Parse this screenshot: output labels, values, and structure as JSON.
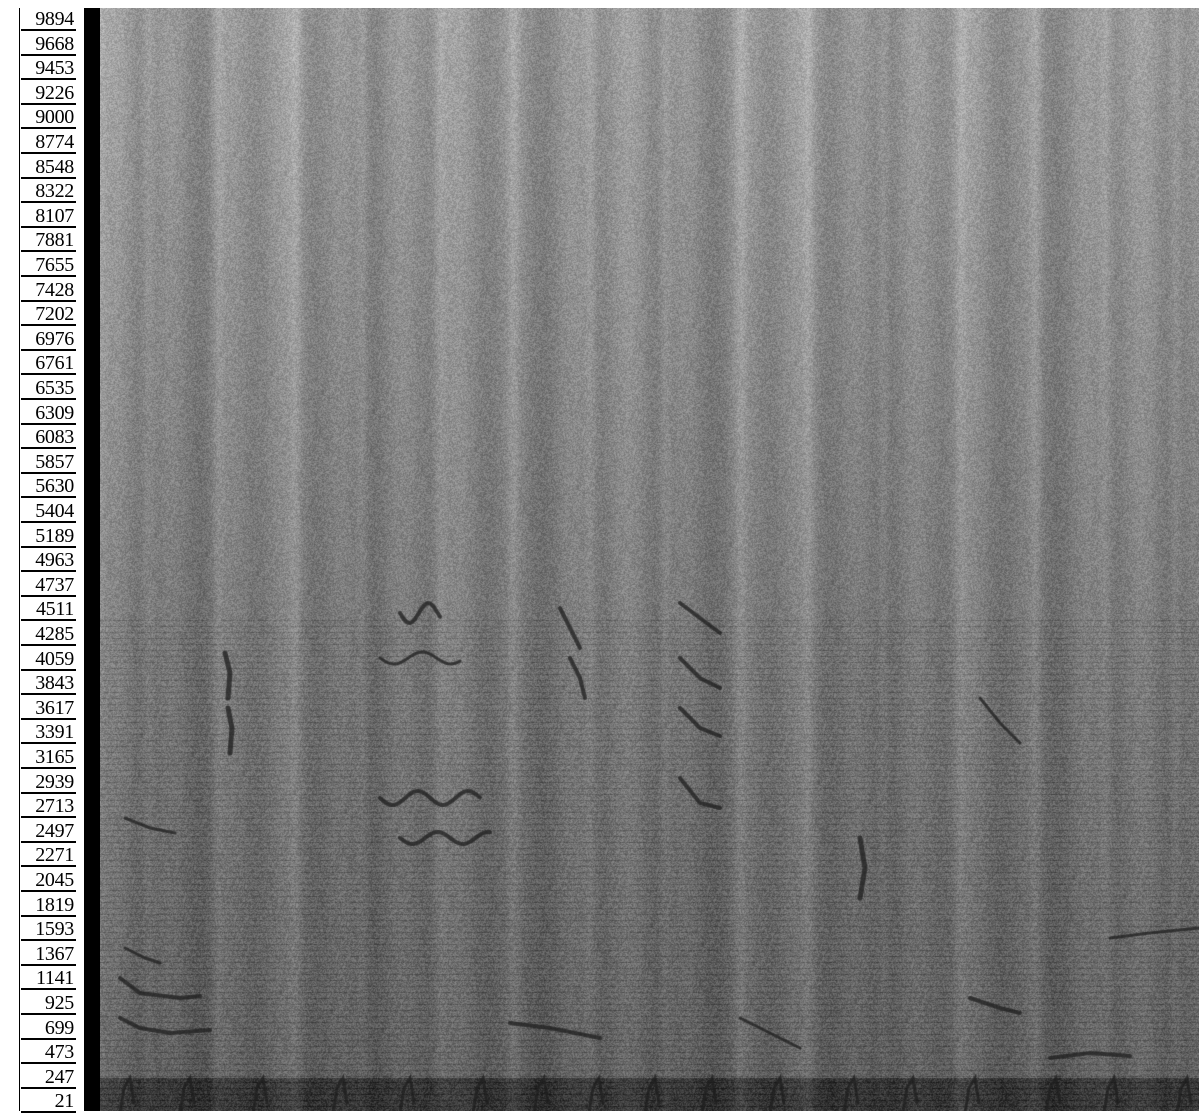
{
  "chart_data": {
    "type": "heatmap",
    "title": "",
    "xlabel": "",
    "ylabel": "",
    "y_tick_labels": [
      "9894",
      "9668",
      "9453",
      "9226",
      "9000",
      "8774",
      "8548",
      "8322",
      "8107",
      "7881",
      "7655",
      "7428",
      "7202",
      "6976",
      "6761",
      "6535",
      "6309",
      "6083",
      "5857",
      "5630",
      "5404",
      "5189",
      "4963",
      "4737",
      "4511",
      "4285",
      "4059",
      "3843",
      "3617",
      "3391",
      "3165",
      "2939",
      "2713",
      "2497",
      "2271",
      "2045",
      "1819",
      "1593",
      "1367",
      "1141",
      "925",
      "699",
      "473",
      "247",
      "21"
    ],
    "ylim": [
      21,
      9894
    ],
    "grid": false,
    "legend": "none",
    "colormap": "grayscale",
    "colors": {
      "background": "#ffffff",
      "axis": "#000000",
      "high_energy": "#2a2a2a",
      "low_energy": "#c8c8c8"
    }
  }
}
